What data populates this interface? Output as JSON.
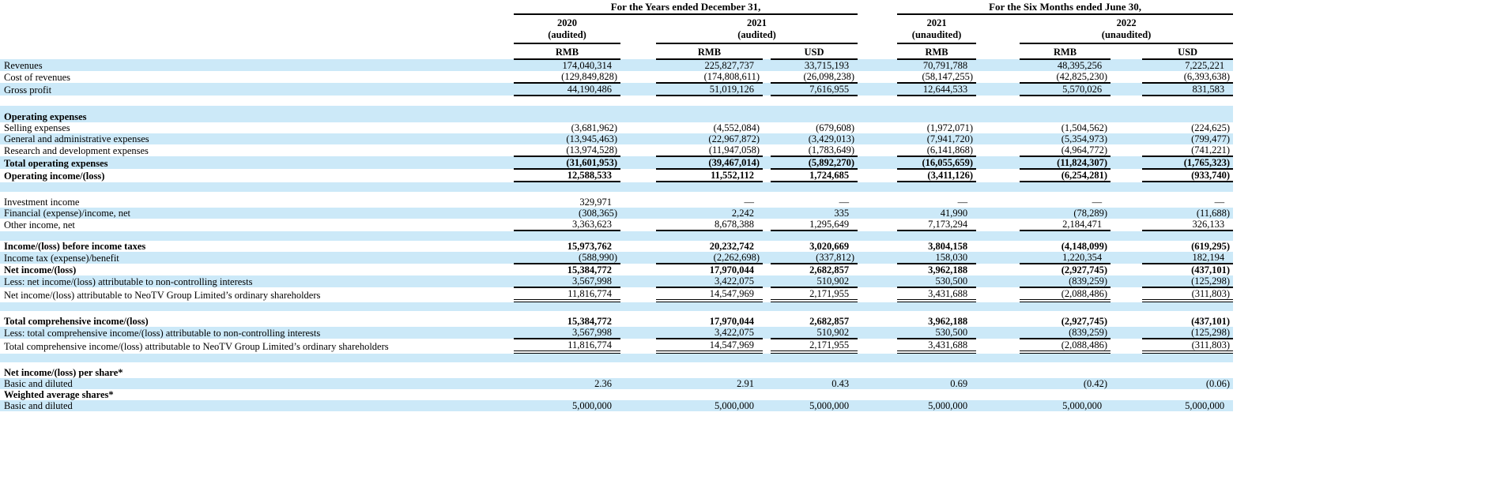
{
  "colors": {
    "stripe": "#cce9f8",
    "text": "#000000",
    "rule": "#000000"
  },
  "table": {
    "header": {
      "group1_title": "For the Years ended December 31,",
      "group2_title": "For the Six Months ended June 30,",
      "col_groups": [
        {
          "year": "2020",
          "note": "(audited)"
        },
        {
          "year": "2021",
          "note": "(audited)"
        },
        {
          "year": "2021",
          "note": "(unaudited)"
        },
        {
          "year": "2022",
          "note": "(unaudited)"
        }
      ],
      "units": [
        "RMB",
        "RMB",
        "USD",
        "RMB",
        "RMB",
        "USD"
      ]
    },
    "rows": [
      {
        "label": "Revenues",
        "shaded": true,
        "values": [
          "174,040,314",
          "225,827,737",
          "33,715,193",
          "70,791,788",
          "48,395,256",
          "7,225,221"
        ]
      },
      {
        "label": "Cost of revenues",
        "rule": "single",
        "values": [
          "(129,849,828)",
          "(174,808,611)",
          "(26,098,238)",
          "(58,147,255)",
          "(42,825,230)",
          "(6,393,638)"
        ]
      },
      {
        "label": "Gross profit",
        "shaded": true,
        "rule": "single",
        "values": [
          "44,190,486",
          "51,019,126",
          "7,616,955",
          "12,644,533",
          "5,570,026",
          "831,583"
        ]
      },
      {
        "type": "blank",
        "h": 13
      },
      {
        "type": "blank",
        "h": 7,
        "shaded": true
      },
      {
        "label": "Operating expenses",
        "bold": true,
        "shaded": true
      },
      {
        "label": "Selling expenses",
        "values": [
          "(3,681,962)",
          "(4,552,084)",
          "(679,608)",
          "(1,972,071)",
          "(1,504,562)",
          "(224,625)"
        ]
      },
      {
        "label": "General and administrative expenses",
        "shaded": true,
        "values": [
          "(13,945,463)",
          "(22,967,872)",
          "(3,429,013)",
          "(7,941,720)",
          "(5,354,973)",
          "(799,477)"
        ]
      },
      {
        "label": "Research and development expenses",
        "rule": "single",
        "values": [
          "(13,974,528)",
          "(11,947,058)",
          "(1,783,649)",
          "(6,141,868)",
          "(4,964,772)",
          "(741,221)"
        ]
      },
      {
        "label": "Total operating expenses",
        "bold": true,
        "shaded": true,
        "rule": "single",
        "values": [
          "(31,601,953)",
          "(39,467,014)",
          "(5,892,270)",
          "(16,055,659)",
          "(11,824,307)",
          "(1,765,323)"
        ]
      },
      {
        "label": "Operating income/(loss)",
        "bold": true,
        "rule": "single",
        "values": [
          "12,588,533",
          "11,552,112",
          "1,724,685",
          "(3,411,126)",
          "(6,254,281)",
          "(933,740)"
        ]
      },
      {
        "type": "blank",
        "h": 13,
        "shaded": true
      },
      {
        "type": "blank",
        "h": 6
      },
      {
        "label": "Investment income",
        "values": [
          "329,971",
          "—",
          "—",
          "—",
          "—",
          "—"
        ]
      },
      {
        "label": "Financial (expense)/income, net",
        "shaded": true,
        "values": [
          "(308,365)",
          "2,242",
          "335",
          "41,990",
          "(78,289)",
          "(11,688)"
        ]
      },
      {
        "label": "Other income, net",
        "rule": "single",
        "values": [
          "3,363,623",
          "8,678,388",
          "1,295,649",
          "7,173,294",
          "2,184,471",
          "326,133"
        ]
      },
      {
        "type": "blank",
        "h": 13,
        "shaded": true
      },
      {
        "label": "Income/(loss) before income taxes",
        "bold": true,
        "values": [
          "15,973,762",
          "20,232,742",
          "3,020,669",
          "3,804,158",
          "(4,148,099)",
          "(619,295)"
        ]
      },
      {
        "label": "Income tax (expense)/benefit",
        "shaded": true,
        "rule": "single",
        "values": [
          "(588,990)",
          "(2,262,698)",
          "(337,812)",
          "158,030",
          "1,220,354",
          "182,194"
        ]
      },
      {
        "label": "Net income/(loss)",
        "bold": true,
        "values": [
          "15,384,772",
          "17,970,044",
          "2,682,857",
          "3,962,188",
          "(2,927,745)",
          "(437,101)"
        ]
      },
      {
        "label": "Less: net income/(loss) attributable to non-controlling interests",
        "shaded": true,
        "rule": "single",
        "values": [
          "3,567,998",
          "3,422,075",
          "510,902",
          "530,500",
          "(839,259)",
          "(125,298)"
        ]
      },
      {
        "label": "Net income/(loss) attributable to NeoTV Group Limited’s ordinary shareholders",
        "rule": "double",
        "values": [
          "11,816,774",
          "14,547,969",
          "2,171,955",
          "3,431,688",
          "(2,088,486)",
          "(311,803)"
        ]
      },
      {
        "type": "blank",
        "h": 13,
        "shaded": true
      },
      {
        "type": "blank",
        "h": 6
      },
      {
        "label": "Total comprehensive income/(loss)",
        "bold": true,
        "values": [
          "15,384,772",
          "17,970,044",
          "2,682,857",
          "3,962,188",
          "(2,927,745)",
          "(437,101)"
        ]
      },
      {
        "label": "Less: total comprehensive income/(loss) attributable to non-controlling interests",
        "shaded": true,
        "rule": "single",
        "values": [
          "3,567,998",
          "3,422,075",
          "510,902",
          "530,500",
          "(839,259)",
          "(125,298)"
        ]
      },
      {
        "label": "Total comprehensive income/(loss) attributable to NeoTV Group Limited’s ordinary shareholders",
        "rule": "double",
        "values": [
          "11,816,774",
          "14,547,969",
          "2,171,955",
          "3,431,688",
          "(2,088,486)",
          "(311,803)"
        ]
      },
      {
        "type": "blank",
        "h": 13,
        "shaded": true
      },
      {
        "type": "blank",
        "h": 6
      },
      {
        "label": "Net income/(loss) per share*",
        "bold": true
      },
      {
        "label": "Basic and diluted",
        "shaded": true,
        "values": [
          "2.36",
          "2.91",
          "0.43",
          "0.69",
          "(0.42)",
          "(0.06)"
        ]
      },
      {
        "label": "Weighted average shares*",
        "bold": true
      },
      {
        "label": "Basic and diluted",
        "shaded": true,
        "values": [
          "5,000,000",
          "5,000,000",
          "5,000,000",
          "5,000,000",
          "5,000,000",
          "5,000,000"
        ]
      }
    ]
  }
}
